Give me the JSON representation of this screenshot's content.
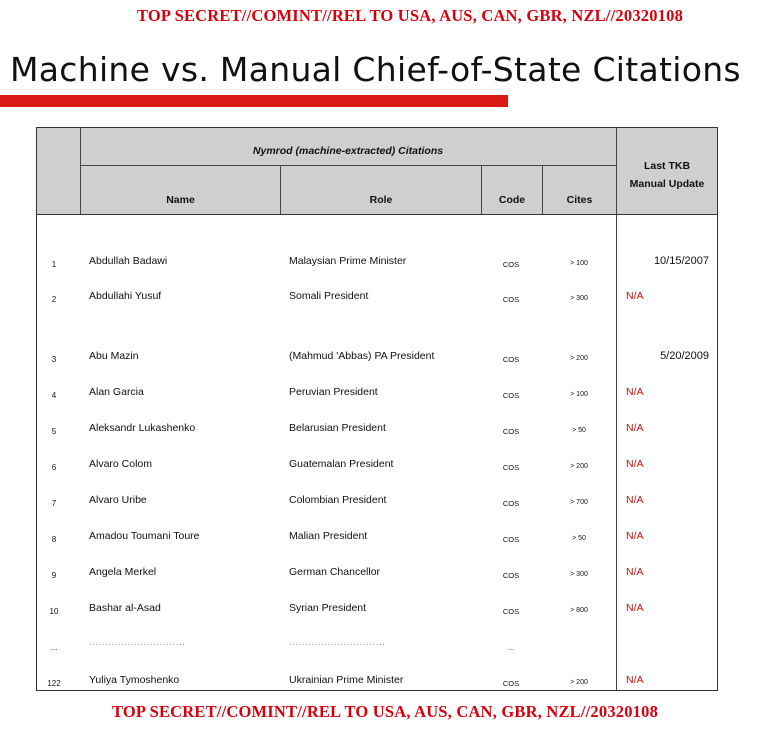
{
  "classification_top": "TOP SECRET//COMINT//REL TO USA, AUS, CAN, GBR, NZL//20320108",
  "title": "Machine vs. Manual Chief-of-State Citations",
  "table": {
    "group_header": "Nymrod (machine-extracted) Citations",
    "columns": {
      "name": "Name",
      "role": "Role",
      "code": "Code",
      "cites": "Cites",
      "update_line1": "Last TKB",
      "update_line2": "Manual Update"
    },
    "rows": [
      {
        "num": "1",
        "name": "Abdullah Badawi",
        "role": "Malaysian Prime Minister",
        "code": "COS",
        "cites": "> 100",
        "update": "10/15/2007"
      },
      {
        "num": "2",
        "name": "Abdullahi Yusuf",
        "role": "Somali President",
        "code": "COS",
        "cites": "> 300",
        "update": "N/A"
      },
      {
        "num": "3",
        "name": "Abu Mazin",
        "role": "(Mahmud 'Abbas) PA President",
        "code": "COS",
        "cites": "> 200",
        "update": "5/20/2009"
      },
      {
        "num": "4",
        "name": "Alan Garcia",
        "role": "Peruvian President",
        "code": "COS",
        "cites": "> 100",
        "update": "N/A"
      },
      {
        "num": "5",
        "name": "Aleksandr Lukashenko",
        "role": "Belarusian President",
        "code": "COS",
        "cites": "> 50",
        "update": "N/A"
      },
      {
        "num": "6",
        "name": "Alvaro Colom",
        "role": "Guatemalan President",
        "code": "COS",
        "cites": "> 200",
        "update": "N/A"
      },
      {
        "num": "7",
        "name": "Alvaro Uribe",
        "role": "Colombian President",
        "code": "COS",
        "cites": "> 700",
        "update": "N/A"
      },
      {
        "num": "8",
        "name": "Amadou Toumani Toure",
        "role": "Malian President",
        "code": "COS",
        "cites": "> 50",
        "update": "N/A"
      },
      {
        "num": "9",
        "name": "Angela Merkel",
        "role": "German Chancellor",
        "code": "COS",
        "cites": "> 300",
        "update": "N/A"
      },
      {
        "num": "10",
        "name": "Bashar al-Asad",
        "role": "Syrian President",
        "code": "COS",
        "cites": "> 800",
        "update": "N/A"
      },
      {
        "num": "...",
        "name": "..............................",
        "role": "..............................",
        "code": "...",
        "cites": "",
        "update": ""
      },
      {
        "num": "122",
        "name": "Yuliya Tymoshenko",
        "role": "Ukrainian Prime Minister",
        "code": "COS",
        "cites": "> 200",
        "update": "N/A"
      }
    ]
  },
  "classification_bottom": "TOP SECRET//COMINT//REL TO USA, AUS, CAN, GBR, NZL//20320108",
  "colors": {
    "classification": "#d8000c",
    "title_bar": "#d91a14",
    "na": "#c81010",
    "header_bg": "#cfcfcf"
  }
}
